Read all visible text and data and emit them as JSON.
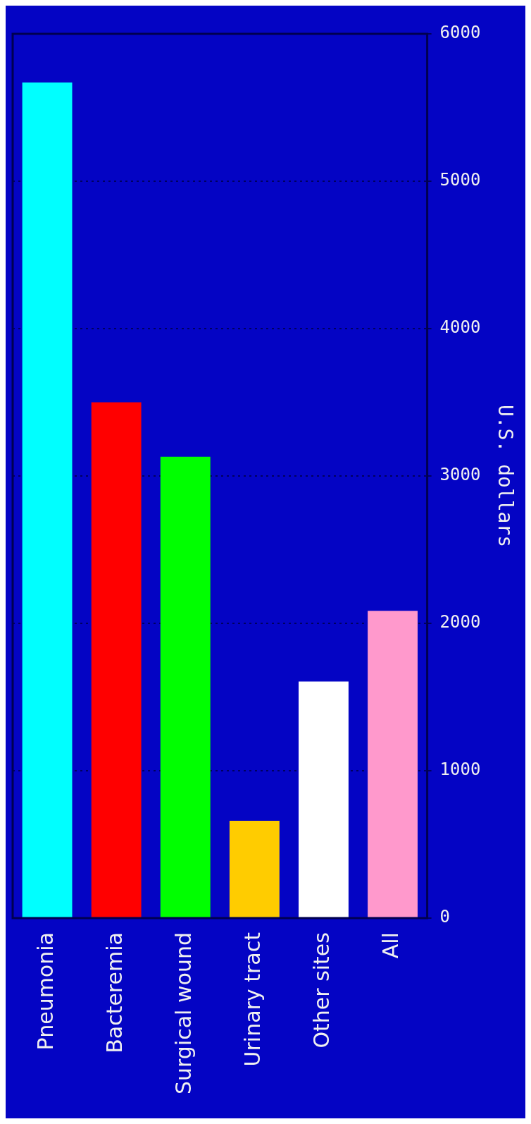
{
  "chart_data": {
    "type": "bar",
    "ylabel": "U.S. dollars",
    "categories": [
      "Pneumonia",
      "Bacteremia",
      "Surgical wound",
      "Urinary tract",
      "Other sites",
      "All"
    ],
    "values": [
      5670,
      3500,
      3130,
      660,
      1605,
      2085
    ],
    "colors": [
      "#00ffff",
      "#ff0000",
      "#00ff00",
      "#ffcc00",
      "#ffffff",
      "#ff99cc"
    ],
    "ylim": [
      0,
      6000
    ],
    "yticks": [
      0,
      1000,
      2000,
      3000,
      4000,
      5000,
      6000
    ],
    "grid": "y",
    "legend": false
  }
}
